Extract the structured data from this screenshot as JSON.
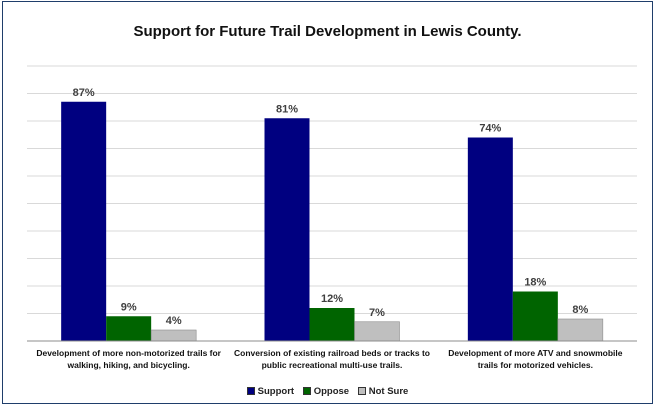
{
  "chart_data": {
    "type": "bar",
    "title": "Support for Future Trail Development in Lewis County.",
    "xlabel": "",
    "ylabel": "",
    "ylim": [
      0,
      100
    ],
    "grid": true,
    "legend_position": "bottom",
    "categories": [
      [
        "Development of more non-motorized trails for",
        "walking, hiking, and bicycling."
      ],
      [
        "Conversion of existing railroad beds or tracks to",
        "public recreational multi-use trails."
      ],
      [
        "Development of more ATV and snowmobile",
        "trails for motorized vehicles."
      ]
    ],
    "series": [
      {
        "name": "Support",
        "color": "#000080",
        "values": [
          87,
          81,
          74
        ],
        "labels": [
          "87%",
          "81%",
          "74%"
        ]
      },
      {
        "name": "Oppose",
        "color": "#006400",
        "values": [
          9,
          12,
          18
        ],
        "labels": [
          "9%",
          "12%",
          "18%"
        ]
      },
      {
        "name": "Not Sure",
        "color": "#bfbfbf",
        "values": [
          4,
          7,
          8
        ],
        "labels": [
          "4%",
          "7%",
          "8%"
        ]
      }
    ]
  }
}
